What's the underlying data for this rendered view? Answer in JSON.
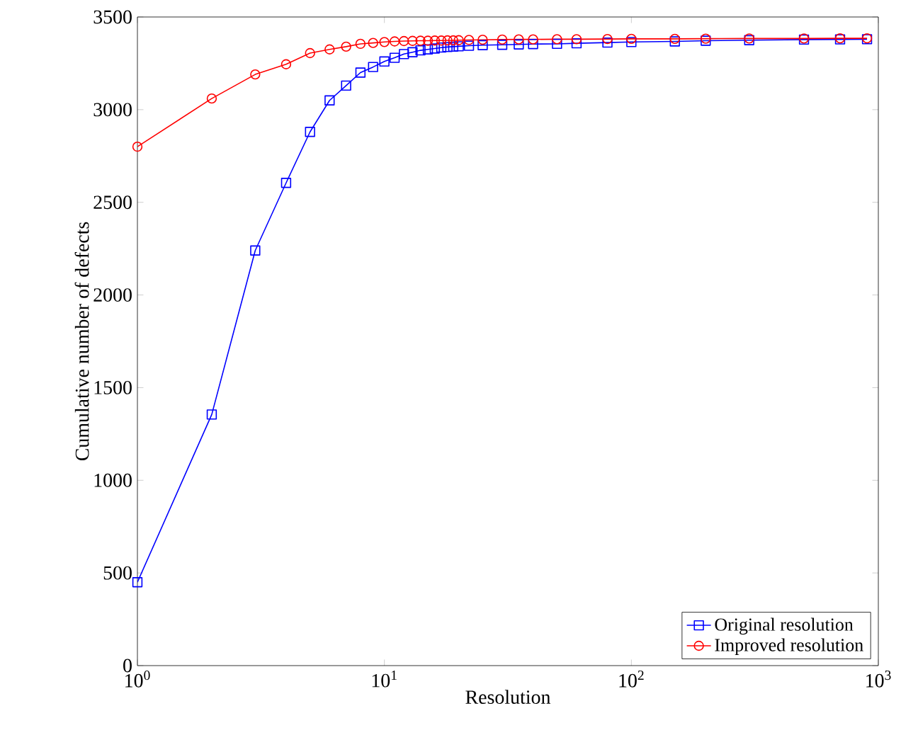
{
  "chart_data": {
    "type": "line",
    "xlabel": "Resolution",
    "ylabel": "Cumulative number of defects",
    "log": "x",
    "xlim": [
      1,
      1000
    ],
    "ylim": [
      0,
      3500
    ],
    "xticks": [
      {
        "value": 1,
        "label": "10$^{0}$"
      },
      {
        "value": 10,
        "label": "10$^{1}$"
      },
      {
        "value": 100,
        "label": "10$^{2}$"
      },
      {
        "value": 1000,
        "label": "10$^{3}$"
      }
    ],
    "yticks": [
      0,
      500,
      1000,
      1500,
      2000,
      2500,
      3000,
      3500
    ],
    "grid": false,
    "legend": "bottom right",
    "series": [
      {
        "name": "Original resolution",
        "color": "#0000ff",
        "marker": "square",
        "x": [
          1,
          2,
          3,
          4,
          5,
          6,
          7,
          8,
          9,
          10,
          11,
          12,
          13,
          14,
          15,
          16,
          17,
          18,
          19,
          20,
          22,
          25,
          30,
          35,
          40,
          50,
          60,
          80,
          100,
          150,
          200,
          300,
          500,
          700,
          900
        ],
        "values": [
          450,
          1355,
          2240,
          2605,
          2880,
          3050,
          3130,
          3200,
          3230,
          3260,
          3280,
          3300,
          3310,
          3320,
          3325,
          3330,
          3335,
          3338,
          3340,
          3342,
          3345,
          3348,
          3350,
          3352,
          3354,
          3355,
          3358,
          3362,
          3365,
          3368,
          3372,
          3375,
          3378,
          3379,
          3380
        ]
      },
      {
        "name": "Improved resolution",
        "color": "#ff0000",
        "marker": "circle",
        "x": [
          1,
          2,
          3,
          4,
          5,
          6,
          7,
          8,
          9,
          10,
          11,
          12,
          13,
          14,
          15,
          16,
          17,
          18,
          19,
          20,
          22,
          25,
          30,
          35,
          40,
          50,
          60,
          80,
          100,
          150,
          200,
          300,
          500,
          700,
          900
        ],
        "values": [
          2800,
          3060,
          3190,
          3245,
          3305,
          3325,
          3340,
          3355,
          3360,
          3365,
          3368,
          3370,
          3371,
          3372,
          3372,
          3373,
          3373,
          3374,
          3374,
          3375,
          3376,
          3377,
          3378,
          3379,
          3379,
          3380,
          3380,
          3381,
          3382,
          3382,
          3383,
          3384,
          3384,
          3385,
          3385
        ]
      }
    ]
  }
}
